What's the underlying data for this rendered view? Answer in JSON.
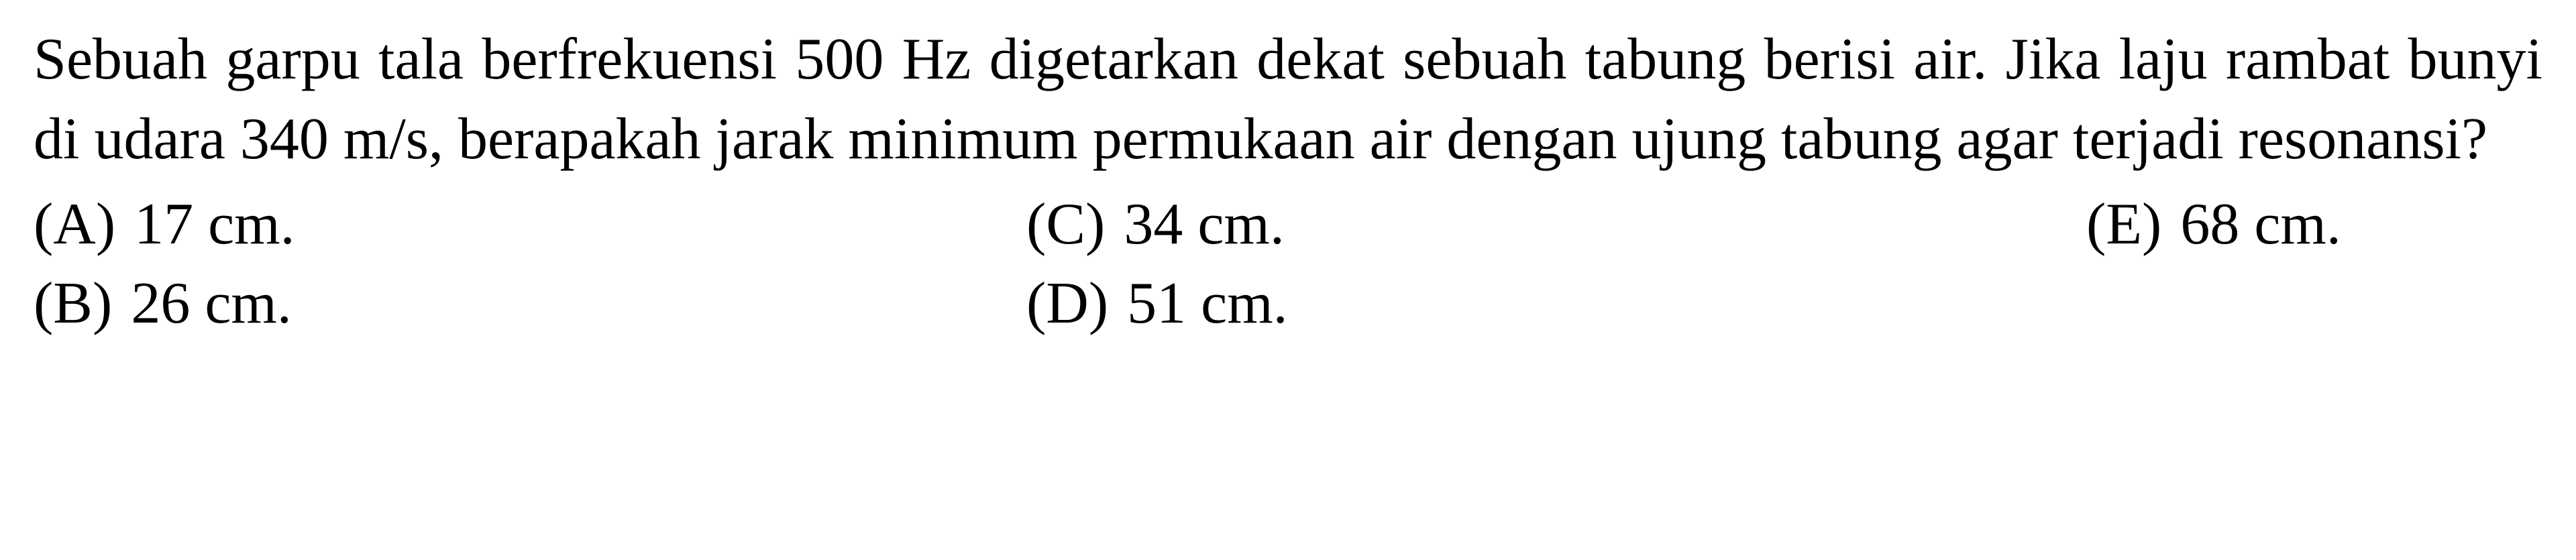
{
  "question": {
    "text": "Sebuah garpu tala berfrekuensi 500 Hz digetarkan dekat sebuah tabung berisi air. Jika laju rambat bunyi di udara 340 m/s, berapakah jarak minimum permukaan air dengan ujung tabung agar terjadi resonansi?",
    "font_size": 88,
    "color": "#000000",
    "font_family": "Times New Roman",
    "background_color": "#ffffff"
  },
  "options": {
    "a": {
      "label": "(A)",
      "value": "17 cm."
    },
    "b": {
      "label": "(B)",
      "value": "26 cm."
    },
    "c": {
      "label": "(C)",
      "value": "34 cm."
    },
    "d": {
      "label": "(D)",
      "value": "51 cm."
    },
    "e": {
      "label": "(E)",
      "value": "68 cm."
    }
  }
}
